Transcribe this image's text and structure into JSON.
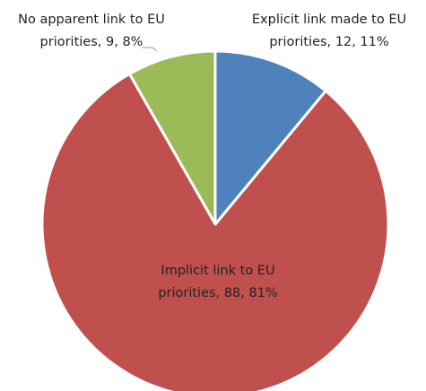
{
  "chart_data": {
    "type": "pie",
    "values": [
      12,
      88,
      9
    ],
    "value_labels": [
      "Explicit link made to EU priorities, 12, 11%",
      "Implicit link to EU priorities, 88, 81%",
      "No apparent link to EU priorities, 9, 8%"
    ],
    "colors": [
      "#4f81bd",
      "#c0504d",
      "#9bbb59"
    ]
  }
}
